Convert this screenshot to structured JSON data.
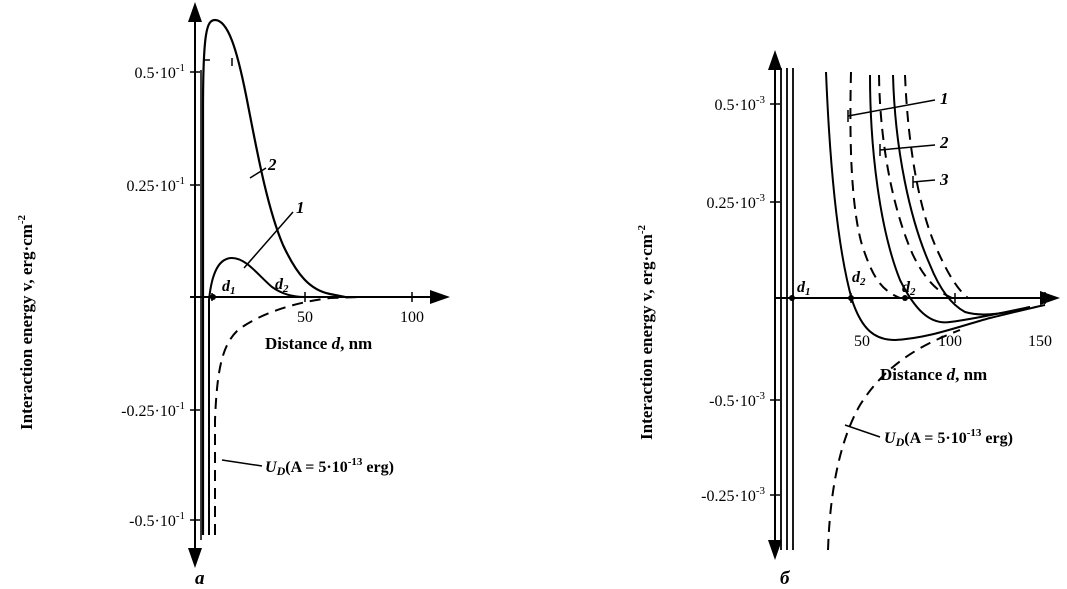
{
  "chart_data": [
    {
      "type": "line",
      "panel_label": "a",
      "xlabel": "Distance d, nm",
      "ylabel": "Interaction energy v, erg·cm-2",
      "x_ticks": [
        "50",
        "100"
      ],
      "y_ticks": [
        "0.5·10-1",
        "0.25·10-1",
        "-0.25·10-1",
        "-0.5·10-1"
      ],
      "markers": [
        "d1",
        "d2"
      ],
      "annotation": "UD(A = 5·10-13 erg)",
      "series": [
        {
          "name": "1",
          "style": "solid",
          "x": [
            7,
            10,
            14,
            18,
            22,
            28,
            34,
            40,
            45
          ],
          "y": [
            -0.05,
            0.0,
            0.006,
            0.009,
            0.008,
            0.005,
            0.002,
            0.0005,
            0.0
          ]
        },
        {
          "name": "2",
          "style": "solid",
          "x": [
            4,
            5,
            8,
            12,
            16,
            20,
            26,
            32,
            40,
            48,
            56,
            62,
            66
          ],
          "y": [
            -0.05,
            0.05,
            0.06,
            0.061,
            0.056,
            0.05,
            0.04,
            0.028,
            0.017,
            0.008,
            0.002,
            0.0004,
            0.0
          ]
        },
        {
          "name": "UD",
          "style": "dashed",
          "x": [
            10,
            11,
            13,
            17,
            23,
            32,
            45,
            60,
            75
          ],
          "y": [
            -0.05,
            -0.035,
            -0.02,
            -0.012,
            -0.007,
            -0.004,
            -0.0015,
            -0.0004,
            0.0
          ]
        }
      ]
    },
    {
      "type": "line",
      "panel_label": "б",
      "xlabel": "Distance d, nm",
      "ylabel": "Interaction energy v, erg·cm-2",
      "x_ticks": [
        "50",
        "100",
        "150"
      ],
      "y_ticks": [
        "0.5·10-3",
        "0.25·10-3",
        "-0.5·10-3",
        "-0.25·10-3"
      ],
      "markers": [
        "d1",
        "d2",
        "d2"
      ],
      "annotation": "UD(A = 5·10-13 erg)",
      "series": [
        {
          "name": "1",
          "style": "solid",
          "x": [
            25,
            30,
            35,
            40,
            50,
            60,
            75,
            90,
            110,
            130,
            150
          ],
          "y": [
            0.00056,
            0.0003,
            0.00012,
            0.0,
            -0.00014,
            -0.00018,
            -0.00018,
            -0.00015,
            -9e-05,
            -5e-05,
            -2e-05
          ]
        },
        {
          "name": "2",
          "style": "solid",
          "x": [
            56,
            60,
            65,
            72,
            80,
            90,
            100,
            110,
            130,
            150
          ],
          "y": [
            0.00056,
            0.0004,
            0.00024,
            0.00012,
            4e-05,
            -4e-05,
            -8e-05,
            -9e-05,
            -5e-05,
            -2e-05
          ]
        },
        {
          "name": "3",
          "style": "solid",
          "x": [
            76,
            80,
            86,
            92,
            100,
            106,
            112,
            125,
            150
          ],
          "y": [
            0.00056,
            0.00044,
            0.0003,
            0.00019,
            6e-05,
            -2e-05,
            -6e-05,
            -5e-05,
            -2e-05
          ]
        },
        {
          "name": "1 (dashed)",
          "style": "dashed",
          "x": [
            40,
            42,
            45,
            50,
            55,
            60
          ],
          "y": [
            0.00056,
            0.00038,
            0.00022,
            0.0001,
            3e-05,
            0.0
          ]
        },
        {
          "name": "2 (dashed)",
          "style": "dashed",
          "x": [
            64,
            67,
            72,
            78,
            85,
            92
          ],
          "y": [
            0.00056,
            0.00044,
            0.00028,
            0.00015,
            5e-05,
            0.0
          ]
        },
        {
          "name": "3 (dashed)",
          "style": "dashed",
          "x": [
            84,
            87,
            92,
            98,
            104,
            110
          ],
          "y": [
            0.00056,
            0.00044,
            0.00028,
            0.00014,
            4e-05,
            0.0
          ]
        },
        {
          "name": "UD",
          "style": "dashed",
          "x": [
            30,
            32,
            36,
            42,
            50,
            60,
            70
          ],
          "y": [
            -0.0014,
            -0.0011,
            -0.0008,
            -0.0006,
            -0.0004,
            -0.00025,
            -0.0001
          ]
        }
      ]
    }
  ]
}
